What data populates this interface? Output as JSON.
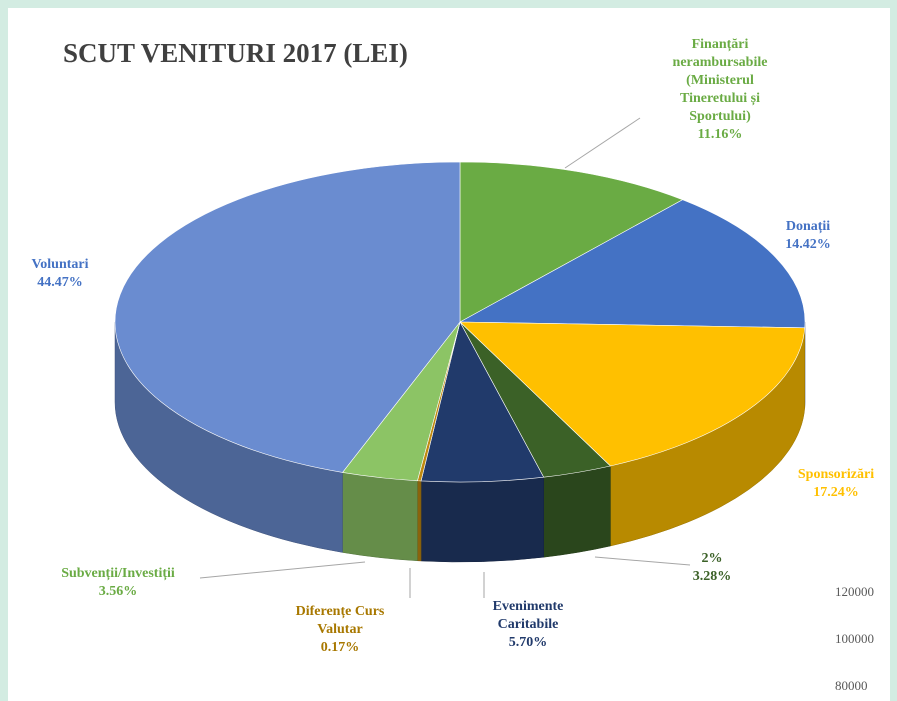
{
  "chart_data": {
    "type": "pie",
    "title": "SCUT VENITURI 2017 (LEI)",
    "categories": [
      "Finanțări nerambursabile (Ministerul Tineretului și Sportului)",
      "Donații",
      "Sponsorizări",
      "2%",
      "Evenimente Caritabile",
      "Diferențe Curs Valutar",
      "Subvenții/Investiții",
      "Voluntari"
    ],
    "values": [
      11.16,
      14.42,
      17.24,
      3.28,
      5.7,
      0.17,
      3.56,
      44.47
    ],
    "value_labels": [
      "11.16%",
      "14.42%",
      "17.24%",
      "3.28%",
      "5.70%",
      "0.17%",
      "3.56%",
      "44.47%"
    ],
    "colors": [
      "#6aab44",
      "#4472c4",
      "#ffc000",
      "#3b6127",
      "#213a6b",
      "#c08a10",
      "#8cc465",
      "#6a8cd0"
    ]
  },
  "background_chart": {
    "yticks": [
      120000,
      100000,
      80000
    ]
  }
}
